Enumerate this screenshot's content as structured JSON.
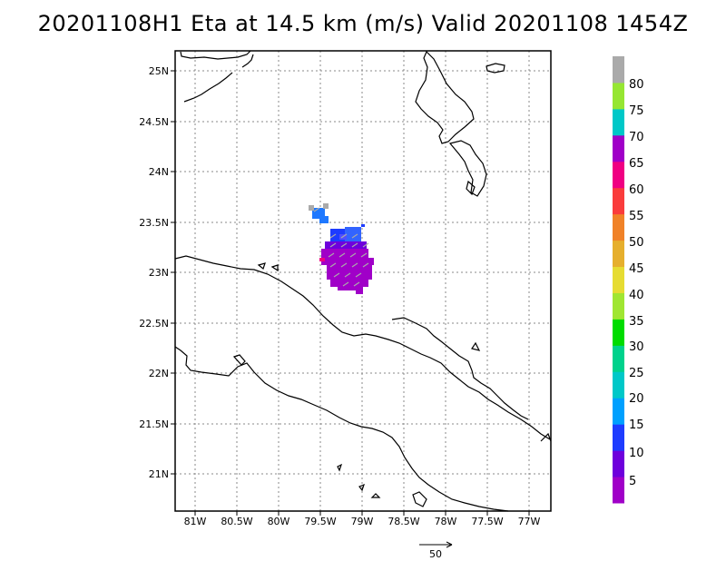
{
  "title": "20201108H1 Eta at 14.5 km (m/s) Valid 20201108 1454Z",
  "lon_ticks": [
    "81W",
    "80.5W",
    "80W",
    "79.5W",
    "79W",
    "78.5W",
    "78W",
    "77.5W",
    "77W"
  ],
  "lat_ticks": [
    "25N",
    "24.5N",
    "24N",
    "23.5N",
    "23N",
    "22.5N",
    "22N",
    "21.5N",
    "21N"
  ],
  "colorbar": {
    "labels": [
      "5",
      "10",
      "15",
      "20",
      "25",
      "30",
      "35",
      "40",
      "45",
      "50",
      "55",
      "60",
      "65",
      "70",
      "75",
      "80"
    ],
    "colors": [
      "#a000c8",
      "#6e00dc",
      "#1e3cff",
      "#00a0ff",
      "#00c8c8",
      "#00d28c",
      "#00dc00",
      "#a0e632",
      "#e6dc32",
      "#e6af2d",
      "#f08228",
      "#fa3c3c",
      "#f00082",
      "#a000c8",
      "#00c8c8",
      "#96e632",
      "#aaaaaa"
    ]
  },
  "reference_vector": {
    "label": "50"
  },
  "wind_field": {
    "dominant_speed_ms": "0-5",
    "secondary_speed_ms": "10-15"
  }
}
